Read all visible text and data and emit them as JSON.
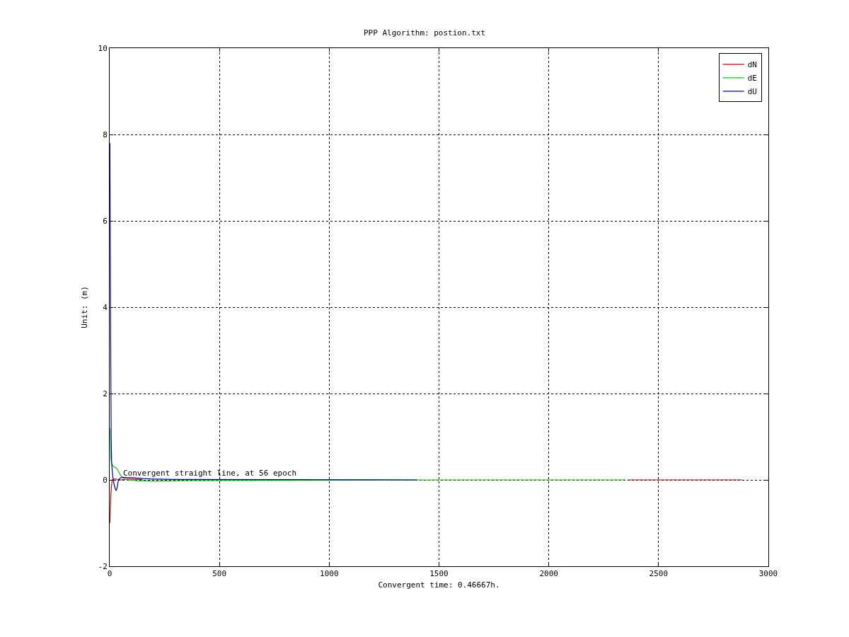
{
  "chart_data": {
    "type": "line",
    "title": "PPP Algorithm: postion.txt",
    "xlabel": "Convergent time: 0.46667h.",
    "ylabel": "Unit: (m)",
    "xlim": [
      0,
      3000
    ],
    "xticks": [
      0,
      500,
      1000,
      1500,
      2000,
      2500,
      3000
    ],
    "ylim": [
      -2,
      10
    ],
    "yticks": [
      -2,
      0,
      2,
      4,
      6,
      8,
      10
    ],
    "grid": true,
    "legend": "top right",
    "line_style": "solid",
    "annotations": [
      {
        "text": "Convergent straight line, at 56 epoch",
        "x": 56,
        "y": 0
      }
    ],
    "series": [
      {
        "name": "dN",
        "color": "#d40000",
        "x": [
          1,
          3,
          5,
          8,
          12,
          20,
          30,
          50,
          80,
          150,
          1000,
          2360,
          2880
        ],
        "values": [
          -1.0,
          -0.7,
          -0.4,
          -0.15,
          0,
          0.02,
          0.02,
          0.0,
          0.02,
          0.01,
          null,
          0,
          0
        ]
      },
      {
        "name": "dE",
        "color": "#00d400",
        "x": [
          1,
          3,
          5,
          8,
          12,
          20,
          30,
          40,
          50,
          60,
          80,
          120,
          200,
          400,
          1500,
          2350
        ],
        "values": [
          1.2,
          0.8,
          0.5,
          0.4,
          0.35,
          0.3,
          0.28,
          0.2,
          0.1,
          0.05,
          0.0,
          -0.02,
          -0.03,
          -0.02,
          0,
          0
        ]
      },
      {
        "name": "dU",
        "color": "#0000b0",
        "x": [
          1,
          3,
          5,
          7,
          9,
          12,
          15,
          20,
          25,
          30,
          35,
          40,
          50,
          60,
          80,
          100,
          150,
          200,
          300,
          1400
        ],
        "values": [
          7.8,
          5.3,
          2.7,
          1.0,
          0.4,
          0.2,
          0.05,
          -0.1,
          -0.2,
          -0.25,
          -0.15,
          0.0,
          0.05,
          0.06,
          0.05,
          0.05,
          0.03,
          0.02,
          0.01,
          0.0
        ]
      }
    ]
  }
}
